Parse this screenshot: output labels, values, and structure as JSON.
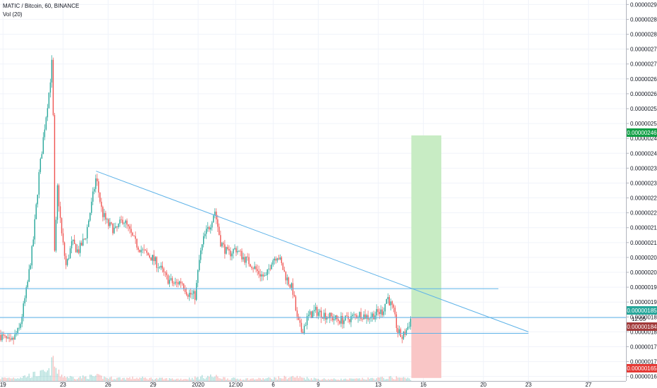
{
  "header": {
    "symbol_line": "MATIC / Bitcoin, 60, BINANCE",
    "volume_line": "Vol (20)"
  },
  "colors": {
    "up": "#26a69a",
    "down": "#ef5350",
    "trend_line": "#5fb3e8",
    "profit_zone": "#c8ecc4",
    "loss_zone": "#f9c6c6",
    "target_badge": "#109f45",
    "price_badge": "#26a69a",
    "stop_badge": "#e53935",
    "stop_badge_dark": "#a23a3a"
  },
  "chart_data": {
    "type": "candlestick",
    "title": "MATIC / Bitcoin, 60, BINANCE",
    "indicator": "Vol (20)",
    "y_ticks": [
      "0.00000290",
      "0.00000285",
      "0.00000280",
      "0.00000275",
      "0.00000270",
      "0.00000265",
      "0.00000260",
      "0.00000255",
      "0.00000250",
      "0.00000245",
      "0.00000240",
      "0.00000235",
      "0.00000230",
      "0.00000225",
      "0.00000220",
      "0.00000215",
      "0.00000210",
      "0.00000205",
      "0.00000200",
      "0.00000195",
      "0.00000190",
      "0.00000185",
      "0.00000180",
      "0.00000175",
      "0.00000170",
      "0.00000165"
    ],
    "y_tick_values": [
      290,
      285,
      280,
      275,
      270,
      265,
      260,
      255,
      250,
      245,
      240,
      235,
      230,
      225,
      220,
      215,
      210,
      205,
      200,
      195,
      190,
      185,
      180,
      175,
      170,
      165
    ],
    "y_unit_scale": 1e-09,
    "ylim": [
      163.5,
      291.5
    ],
    "x_ticks": [
      {
        "label": "19",
        "day": 19
      },
      {
        "label": "23",
        "day": 23
      },
      {
        "label": "26",
        "day": 26
      },
      {
        "label": "29",
        "day": 29
      },
      {
        "label": "2020",
        "day": 32
      },
      {
        "label": "12:00",
        "day": 34.5
      },
      {
        "label": "6",
        "day": 37
      },
      {
        "label": "9",
        "day": 40
      },
      {
        "label": "13",
        "day": 44
      },
      {
        "label": "16",
        "day": 47
      },
      {
        "label": "20",
        "day": 51
      },
      {
        "label": "23",
        "day": 54
      },
      {
        "label": "27",
        "day": 58
      }
    ],
    "xlim": [
      18.8,
      60.5
    ],
    "price_path": [
      [
        18.8,
        179
      ],
      [
        19.5,
        176
      ],
      [
        20.1,
        181
      ],
      [
        20.6,
        195
      ],
      [
        21.0,
        210
      ],
      [
        21.4,
        233
      ],
      [
        21.8,
        250
      ],
      [
        22.1,
        262
      ],
      [
        22.3,
        273
      ],
      [
        22.45,
        200
      ],
      [
        22.6,
        230
      ],
      [
        22.9,
        213
      ],
      [
        23.2,
        202
      ],
      [
        23.6,
        210
      ],
      [
        24.0,
        207
      ],
      [
        24.5,
        212
      ],
      [
        24.9,
        223
      ],
      [
        25.2,
        232
      ],
      [
        25.6,
        220
      ],
      [
        26.0,
        216
      ],
      [
        26.5,
        214
      ],
      [
        27.0,
        218
      ],
      [
        27.4,
        214
      ],
      [
        27.8,
        210
      ],
      [
        28.3,
        207
      ],
      [
        28.9,
        205
      ],
      [
        29.4,
        202
      ],
      [
        29.9,
        198
      ],
      [
        30.4,
        196
      ],
      [
        30.9,
        197
      ],
      [
        31.3,
        193
      ],
      [
        31.8,
        192
      ],
      [
        32.1,
        205
      ],
      [
        32.4,
        212
      ],
      [
        32.8,
        216
      ],
      [
        33.1,
        221
      ],
      [
        33.5,
        210
      ],
      [
        34.0,
        206
      ],
      [
        34.5,
        208
      ],
      [
        35.0,
        205
      ],
      [
        35.5,
        203
      ],
      [
        36.0,
        200
      ],
      [
        36.5,
        198
      ],
      [
        36.9,
        204
      ],
      [
        37.3,
        206
      ],
      [
        37.8,
        199
      ],
      [
        38.3,
        194
      ],
      [
        38.6,
        184
      ],
      [
        38.9,
        180
      ],
      [
        39.3,
        185
      ],
      [
        39.8,
        187
      ],
      [
        40.3,
        186
      ],
      [
        40.8,
        185
      ],
      [
        41.3,
        184
      ],
      [
        41.8,
        184
      ],
      [
        42.3,
        185
      ],
      [
        42.8,
        186
      ],
      [
        43.3,
        185
      ],
      [
        43.8,
        186
      ],
      [
        44.3,
        187
      ],
      [
        44.6,
        192
      ],
      [
        45.0,
        187
      ],
      [
        45.3,
        180
      ],
      [
        45.6,
        178
      ],
      [
        46.0,
        182
      ],
      [
        46.2,
        185
      ]
    ],
    "volume_path": [
      [
        18.8,
        8
      ],
      [
        20.0,
        10
      ],
      [
        21.0,
        18
      ],
      [
        21.6,
        22
      ],
      [
        22.1,
        26
      ],
      [
        22.35,
        60
      ],
      [
        22.6,
        24
      ],
      [
        23.2,
        12
      ],
      [
        24.0,
        10
      ],
      [
        25.2,
        14
      ],
      [
        26.0,
        9
      ],
      [
        27.0,
        8
      ],
      [
        28.0,
        9
      ],
      [
        29.0,
        7
      ],
      [
        30.0,
        6
      ],
      [
        31.0,
        6
      ],
      [
        32.0,
        10
      ],
      [
        32.8,
        14
      ],
      [
        33.2,
        12
      ],
      [
        34.0,
        7
      ],
      [
        35.0,
        6
      ],
      [
        36.0,
        6
      ],
      [
        37.0,
        8
      ],
      [
        38.4,
        12
      ],
      [
        38.8,
        10
      ],
      [
        40.0,
        6
      ],
      [
        41.0,
        5
      ],
      [
        42.0,
        5
      ],
      [
        43.0,
        6
      ],
      [
        44.6,
        9
      ],
      [
        45.4,
        10
      ],
      [
        46.2,
        6
      ]
    ],
    "trend_line": {
      "from": [
        25.2,
        234
      ],
      "to": [
        54.0,
        180
      ]
    },
    "horizontal_lines": [
      {
        "from_day": 18.8,
        "to_day": 52.0,
        "value": 194.5
      },
      {
        "from_day": 18.8,
        "to_day": 60.5,
        "value": 184.8
      },
      {
        "from_day": 18.8,
        "to_day": 54.0,
        "value": 179.5
      }
    ],
    "long_position": {
      "from_day": 46.2,
      "to_day": 48.2,
      "target": 246,
      "entry": 184.8,
      "stop": 164.5
    },
    "price_labels": {
      "target": "0.00000246",
      "current": "0.00000185",
      "countdown": "12:05",
      "low": "0.00000184",
      "stop": "0.00000165"
    }
  }
}
